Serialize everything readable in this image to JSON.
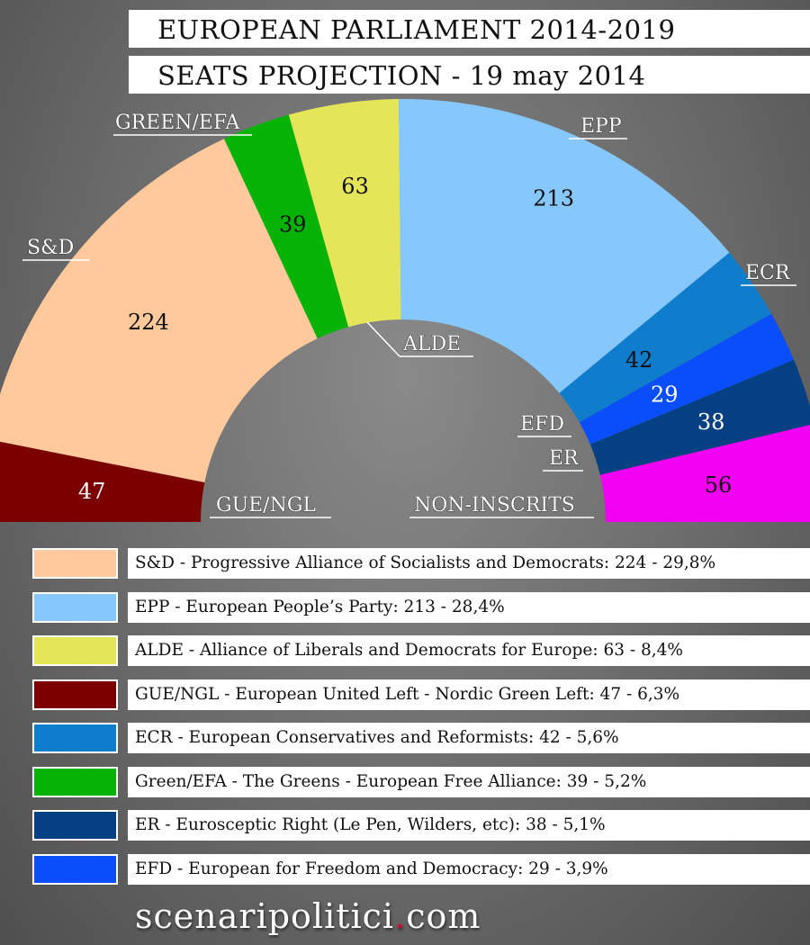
{
  "title_line1": "EUROPEAN PARLIAMENT 2014-2019",
  "title_line2": "SEATS PROJECTION - 19 may 2014",
  "chart_data": {
    "type": "pie",
    "series": [
      {
        "name": "GUE/NGL",
        "value": 47,
        "color": "#7b0000"
      },
      {
        "name": "S&D",
        "value": 224,
        "color": "#ffc99c"
      },
      {
        "name": "GREEN/EFA",
        "value": 39,
        "color": "#08b308"
      },
      {
        "name": "ALDE",
        "value": 63,
        "color": "#e5e55a"
      },
      {
        "name": "EPP",
        "value": 213,
        "color": "#86c8fb"
      },
      {
        "name": "ECR",
        "value": 42,
        "color": "#0f7dcc"
      },
      {
        "name": "EFD",
        "value": 29,
        "color": "#0a4dfa"
      },
      {
        "name": "ER",
        "value": 38,
        "color": "#054182"
      },
      {
        "name": "NON-INSCRITS",
        "value": 56,
        "color": "#f100f1"
      }
    ]
  },
  "legend": [
    {
      "text": "S&D - Progressive Alliance of Socialists and Democrats: 224 - 29,8%",
      "color": "#ffc99c"
    },
    {
      "text": "EPP - European People’s Party: 213 - 28,4%",
      "color": "#86c8fb"
    },
    {
      "text": "ALDE - Alliance of Liberals and Democrats for Europe: 63 - 8,4%",
      "color": "#e5e55a"
    },
    {
      "text": "GUE/NGL - European United Left - Nordic Green Left: 47 - 6,3%",
      "color": "#7b0000"
    },
    {
      "text": "ECR - European Conservatives and Reformists: 42 - 5,6%",
      "color": "#0f7dcc"
    },
    {
      "text": "Green/EFA - The Greens - European Free Alliance: 39 - 5,2%",
      "color": "#08b308"
    },
    {
      "text": "ER - Eurosceptic Right (Le Pen, Wilders, etc): 38 - 5,1%",
      "color": "#054182"
    },
    {
      "text": "EFD - European for Freedom and Democracy: 29 - 3,9%",
      "color": "#0a4dfa"
    }
  ],
  "footer": {
    "part1": "scenaripolitici",
    "dot": ".",
    "part2": "com"
  }
}
